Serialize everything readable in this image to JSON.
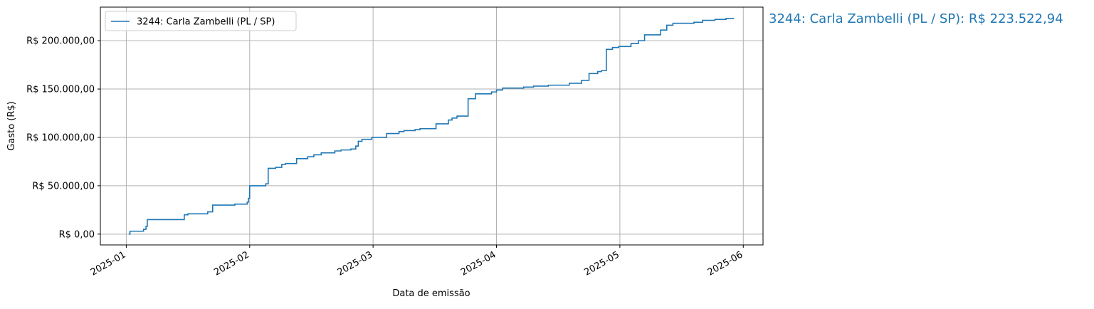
{
  "chart_data": {
    "type": "step",
    "annotation": "3244: Carla Zambelli (PL / SP): R$ 223.522,94",
    "xlabel": "Data de emissão",
    "ylabel": "Gasto (R$)",
    "grid": true,
    "legend": "upper left",
    "xlim": [
      -0.21,
      5.16
    ],
    "ylim": [
      -11176,
      234698
    ],
    "xticks": [
      {
        "value": 0,
        "label": "2025-01"
      },
      {
        "value": 1,
        "label": "2025-02"
      },
      {
        "value": 2,
        "label": "2025-03"
      },
      {
        "value": 3,
        "label": "2025-04"
      },
      {
        "value": 4,
        "label": "2025-05"
      },
      {
        "value": 5,
        "label": "2025-06"
      }
    ],
    "yticks": [
      {
        "value": 0,
        "label": "R$ 0,00"
      },
      {
        "value": 50000,
        "label": "R$ 50.000,00"
      },
      {
        "value": 100000,
        "label": "R$ 100.000,00"
      },
      {
        "value": 150000,
        "label": "R$ 150.000,00"
      },
      {
        "value": 200000,
        "label": "R$ 200.000,00"
      }
    ],
    "x": [
      0.02,
      0.03,
      0.14,
      0.16,
      0.17,
      0.47,
      0.5,
      0.66,
      0.7,
      0.88,
      0.98,
      0.99,
      1.0,
      1.13,
      1.15,
      1.21,
      1.26,
      1.29,
      1.38,
      1.47,
      1.52,
      1.58,
      1.69,
      1.74,
      1.82,
      1.86,
      1.88,
      1.91,
      1.99,
      2.11,
      2.21,
      2.25,
      2.34,
      2.38,
      2.51,
      2.61,
      2.64,
      2.68,
      2.77,
      2.83,
      2.96,
      3.0,
      3.05,
      3.22,
      3.3,
      3.42,
      3.59,
      3.69,
      3.75,
      3.82,
      3.85,
      3.89,
      3.94,
      3.99,
      4.09,
      4.15,
      4.2,
      4.33,
      4.38,
      4.43,
      4.6,
      4.67,
      4.77,
      4.86,
      4.92
    ],
    "series": [
      {
        "name": "3244: Carla Zambelli (PL / SP)",
        "color": "#1f77b4",
        "values": [
          0,
          3000,
          5000,
          8000,
          15000,
          20000,
          21000,
          23000,
          30000,
          31000,
          33000,
          37000,
          50000,
          52000,
          68000,
          69000,
          72000,
          73000,
          78000,
          80000,
          82000,
          84000,
          86000,
          87000,
          88000,
          91000,
          96000,
          98000,
          100000,
          104000,
          106000,
          107000,
          108000,
          109000,
          114000,
          118000,
          120000,
          122000,
          140000,
          145000,
          147000,
          149000,
          151000,
          152000,
          153000,
          154000,
          156000,
          159000,
          166000,
          168000,
          169000,
          191000,
          193000,
          194000,
          197000,
          200000,
          206000,
          211000,
          216000,
          218000,
          219000,
          221000,
          222000,
          223000,
          223522.94
        ]
      }
    ]
  }
}
